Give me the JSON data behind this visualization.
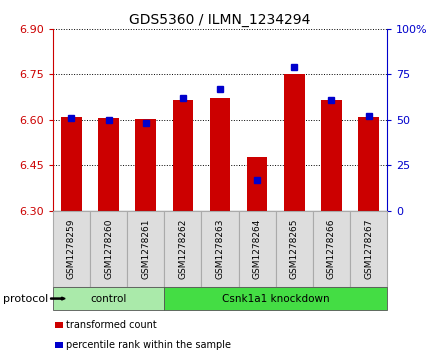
{
  "title": "GDS5360 / ILMN_1234294",
  "samples": [
    "GSM1278259",
    "GSM1278260",
    "GSM1278261",
    "GSM1278262",
    "GSM1278263",
    "GSM1278264",
    "GSM1278265",
    "GSM1278266",
    "GSM1278267"
  ],
  "transformed_counts": [
    6.608,
    6.605,
    6.601,
    6.665,
    6.671,
    6.478,
    6.751,
    6.667,
    6.61
  ],
  "percentile_ranks": [
    51,
    50,
    48,
    62,
    67,
    17,
    79,
    61,
    52
  ],
  "y_min": 6.3,
  "y_max": 6.9,
  "y_ticks": [
    6.3,
    6.45,
    6.6,
    6.75,
    6.9
  ],
  "right_y_ticks": [
    0,
    25,
    50,
    75,
    100
  ],
  "bar_color": "#cc0000",
  "dot_color": "#0000cc",
  "groups": [
    {
      "label": "control",
      "start": 0,
      "end": 2,
      "color": "#aaeaaa"
    },
    {
      "label": "Csnk1a1 knockdown",
      "start": 3,
      "end": 8,
      "color": "#44dd44"
    }
  ],
  "protocol_label": "protocol",
  "legend_items": [
    {
      "label": "transformed count",
      "color": "#cc0000"
    },
    {
      "label": "percentile rank within the sample",
      "color": "#0000cc"
    }
  ],
  "bar_width": 0.55,
  "background_color": "#ffffff",
  "tick_label_color_left": "#cc0000",
  "tick_label_color_right": "#0000cc",
  "grid_color": "#000000",
  "sample_box_color": "#dddddd",
  "sample_box_edge": "#aaaaaa"
}
